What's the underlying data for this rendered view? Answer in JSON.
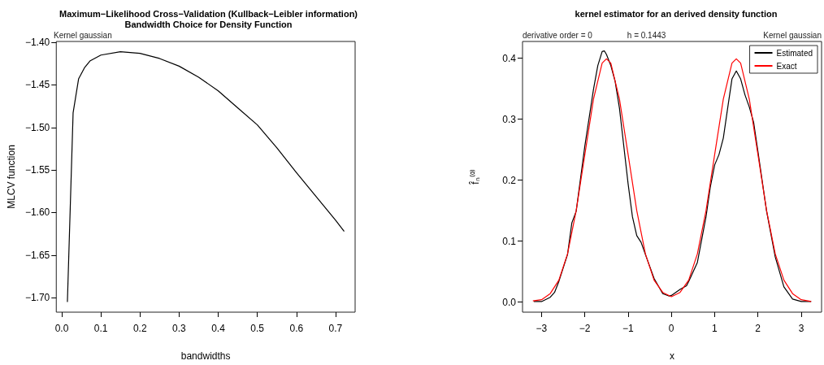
{
  "chart_data": [
    {
      "type": "line",
      "title": "Maximum−Likelihood Cross−Validation (Kullback−Leibler information)",
      "subtitle": "Bandwidth Choice for Density Function",
      "xlabel": "bandwidths",
      "ylabel": "MLCV function",
      "annotations": [
        "Kernel gaussian"
      ],
      "x": [
        0.0144,
        0.029,
        0.043,
        0.058,
        0.072,
        0.1,
        0.15,
        0.2,
        0.25,
        0.3,
        0.35,
        0.4,
        0.45,
        0.5,
        0.55,
        0.6,
        0.65,
        0.7,
        0.722
      ],
      "series": [
        {
          "color": "#000000",
          "values": [
            -1.705,
            -1.483,
            -1.443,
            -1.43,
            -1.422,
            -1.415,
            -1.411,
            -1.413,
            -1.419,
            -1.428,
            -1.441,
            -1.457,
            -1.477,
            -1.497,
            -1.524,
            -1.553,
            -1.581,
            -1.609,
            -1.622
          ]
        }
      ],
      "xlim": [
        -0.014,
        0.75
      ],
      "ylim": [
        -1.717,
        -1.399
      ],
      "xticks": [
        {
          "value": 0,
          "label": "0.0"
        },
        0.1,
        0.2,
        0.3,
        0.4,
        0.5,
        0.6,
        0.7
      ],
      "yticks": [
        {
          "value": -1.4,
          "label": "−1.40"
        },
        {
          "value": -1.45,
          "label": "−1.45"
        },
        {
          "value": -1.5,
          "label": "−1.50"
        },
        {
          "value": -1.55,
          "label": "−1.55"
        },
        {
          "value": -1.6,
          "label": "−1.60"
        },
        {
          "value": -1.65,
          "label": "−1.65"
        },
        {
          "value": -1.7,
          "label": "−1.70"
        }
      ],
      "marker": "none",
      "legend": false
    },
    {
      "type": "line",
      "title": "kernel estimator for an derived density function",
      "xlabel": "x",
      "ylabel": "f̂ₙ⁽⁰⁾",
      "annotations": [
        "derivative order = 0",
        "h = 0.1443",
        "Kernel gaussian"
      ],
      "series": [
        {
          "name": "Estimated",
          "color": "#000000",
          "x": [
            -3.18,
            -3.0,
            -2.8,
            -2.7,
            -2.6,
            -2.4,
            -2.3,
            -2.2,
            -2.0,
            -1.8,
            -1.7,
            -1.6,
            -1.55,
            -1.5,
            -1.4,
            -1.3,
            -1.2,
            -1.0,
            -0.9,
            -0.8,
            -0.7,
            -0.6,
            -0.4,
            -0.2,
            -0.05,
            0,
            0.2,
            0.35,
            0.4,
            0.6,
            0.8,
            0.9,
            1.0,
            1.1,
            1.2,
            1.3,
            1.4,
            1.5,
            1.6,
            1.7,
            1.8,
            1.9,
            2.0,
            2.2,
            2.4,
            2.6,
            2.8,
            3.0,
            3.23
          ],
          "values": [
            0.001,
            0.001,
            0.008,
            0.016,
            0.034,
            0.078,
            0.13,
            0.149,
            0.256,
            0.349,
            0.388,
            0.411,
            0.412,
            0.406,
            0.388,
            0.362,
            0.318,
            0.194,
            0.14,
            0.109,
            0.098,
            0.078,
            0.039,
            0.014,
            0.01,
            0.011,
            0.021,
            0.027,
            0.034,
            0.065,
            0.14,
            0.189,
            0.225,
            0.242,
            0.269,
            0.318,
            0.366,
            0.379,
            0.366,
            0.34,
            0.32,
            0.295,
            0.247,
            0.149,
            0.074,
            0.025,
            0.005,
            0.001,
            0.001
          ]
        },
        {
          "name": "Exact",
          "color": "#ff0000",
          "x": [
            -3.2,
            -3.0,
            -2.8,
            -2.6,
            -2.4,
            -2.2,
            -2.0,
            -1.8,
            -1.6,
            -1.5,
            -1.4,
            -1.2,
            -1.0,
            -0.8,
            -0.6,
            -0.4,
            -0.2,
            0,
            0.2,
            0.4,
            0.6,
            0.8,
            1.0,
            1.2,
            1.4,
            1.5,
            1.6,
            1.8,
            2.0,
            2.2,
            2.4,
            2.6,
            2.8,
            3.0,
            3.23
          ],
          "values": [
            0.002,
            0.004,
            0.014,
            0.036,
            0.079,
            0.15,
            0.242,
            0.333,
            0.392,
            0.399,
            0.392,
            0.333,
            0.242,
            0.15,
            0.079,
            0.036,
            0.016,
            0.009,
            0.016,
            0.036,
            0.079,
            0.15,
            0.242,
            0.333,
            0.392,
            0.399,
            0.392,
            0.333,
            0.242,
            0.15,
            0.079,
            0.036,
            0.014,
            0.004,
            0.001
          ]
        }
      ],
      "xlim": [
        -3.44,
        3.47
      ],
      "ylim": [
        -0.0164,
        0.4274
      ],
      "xticks": [
        -3,
        -2,
        -1,
        0,
        1,
        2,
        3
      ],
      "yticks": [
        {
          "value": 0,
          "label": "0.0"
        },
        0.1,
        0.2,
        0.3,
        0.4
      ],
      "marker": "none",
      "legend": "top right"
    }
  ]
}
